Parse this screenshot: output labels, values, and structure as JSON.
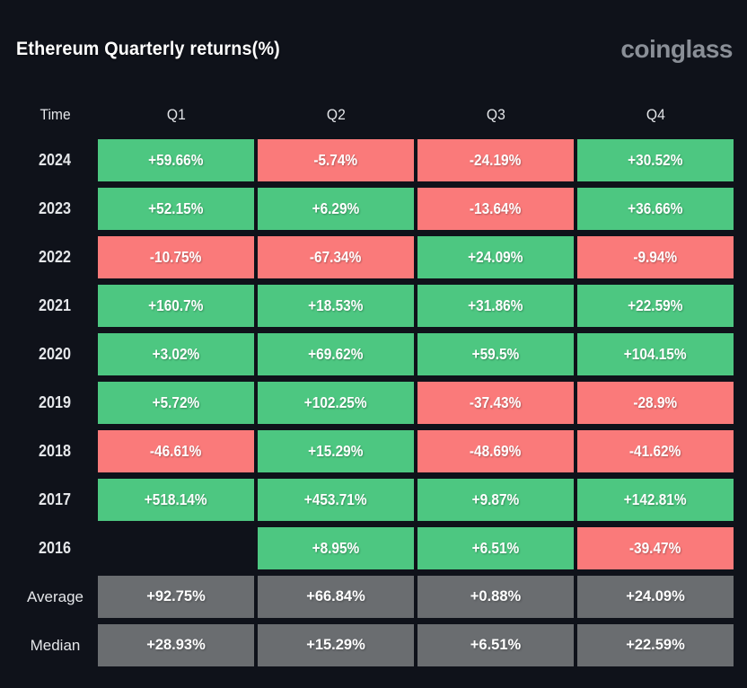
{
  "header": {
    "title": "Ethereum Quarterly returns(%)",
    "logo_text": "coinglass"
  },
  "table": {
    "columns": [
      "Time",
      "Q1",
      "Q2",
      "Q3",
      "Q4"
    ],
    "rows": [
      {
        "label": "2024",
        "type": "year",
        "cells": [
          "+59.66%",
          "-5.74%",
          "-24.19%",
          "+30.52%"
        ]
      },
      {
        "label": "2023",
        "type": "year",
        "cells": [
          "+52.15%",
          "+6.29%",
          "-13.64%",
          "+36.66%"
        ]
      },
      {
        "label": "2022",
        "type": "year",
        "cells": [
          "-10.75%",
          "-67.34%",
          "+24.09%",
          "-9.94%"
        ]
      },
      {
        "label": "2021",
        "type": "year",
        "cells": [
          "+160.7%",
          "+18.53%",
          "+31.86%",
          "+22.59%"
        ]
      },
      {
        "label": "2020",
        "type": "year",
        "cells": [
          "+3.02%",
          "+69.62%",
          "+59.5%",
          "+104.15%"
        ]
      },
      {
        "label": "2019",
        "type": "year",
        "cells": [
          "+5.72%",
          "+102.25%",
          "-37.43%",
          "-28.9%"
        ]
      },
      {
        "label": "2018",
        "type": "year",
        "cells": [
          "-46.61%",
          "+15.29%",
          "-48.69%",
          "-41.62%"
        ]
      },
      {
        "label": "2017",
        "type": "year",
        "cells": [
          "+518.14%",
          "+453.71%",
          "+9.87%",
          "+142.81%"
        ]
      },
      {
        "label": "2016",
        "type": "year",
        "cells": [
          "",
          "+8.95%",
          "+6.51%",
          "-39.47%"
        ]
      },
      {
        "label": "Average",
        "type": "summary",
        "cells": [
          "+92.75%",
          "+66.84%",
          "+0.88%",
          "+24.09%"
        ]
      },
      {
        "label": "Median",
        "type": "summary",
        "cells": [
          "+28.93%",
          "+15.29%",
          "+6.51%",
          "+22.59%"
        ]
      }
    ]
  },
  "colors": {
    "background": "#0f121a",
    "positive": "#4dc781",
    "negative": "#fa7a7a",
    "summary": "#6a6d70",
    "logo": "#8a8f97",
    "text": "#ffffff"
  },
  "chart_data": {
    "type": "heatmap",
    "title": "Ethereum Quarterly returns(%)",
    "unit": "%",
    "columns": [
      "Q1",
      "Q2",
      "Q3",
      "Q4"
    ],
    "rows": [
      "2024",
      "2023",
      "2022",
      "2021",
      "2020",
      "2019",
      "2018",
      "2017",
      "2016",
      "Average",
      "Median"
    ],
    "values": [
      [
        59.66,
        -5.74,
        -24.19,
        30.52
      ],
      [
        52.15,
        6.29,
        -13.64,
        36.66
      ],
      [
        -10.75,
        -67.34,
        24.09,
        -9.94
      ],
      [
        160.7,
        18.53,
        31.86,
        22.59
      ],
      [
        3.02,
        69.62,
        59.5,
        104.15
      ],
      [
        5.72,
        102.25,
        -37.43,
        -28.9
      ],
      [
        -46.61,
        15.29,
        -48.69,
        -41.62
      ],
      [
        518.14,
        453.71,
        9.87,
        142.81
      ],
      [
        null,
        8.95,
        6.51,
        -39.47
      ],
      [
        92.75,
        66.84,
        0.88,
        24.09
      ],
      [
        28.93,
        15.29,
        6.51,
        22.59
      ]
    ],
    "color_coding": {
      "positive": "green",
      "negative": "red",
      "summary_rows": "gray"
    },
    "legend": "off",
    "grid": "off"
  }
}
